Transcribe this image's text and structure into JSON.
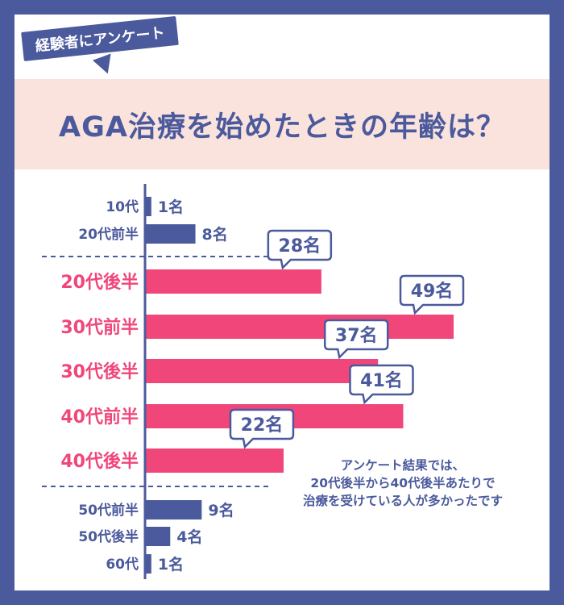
{
  "header": {
    "tag_label": "経験者にアンケート",
    "title": "AGA治療を始めたときの年齢は？"
  },
  "note_lines": [
    "アンケート結果では、",
    "20代後半から40代後半あたりで",
    "治療を受けている人が多かったです"
  ],
  "colors": {
    "navy": "#4b5a9c",
    "pink": "#f0467a",
    "band": "#fae2dd"
  },
  "chart_data": {
    "type": "bar",
    "orientation": "horizontal",
    "unit": "名",
    "categories": [
      "10代",
      "20代前半",
      "20代後半",
      "30代前半",
      "30代後半",
      "40代前半",
      "40代後半",
      "50代前半",
      "50代後半",
      "60代"
    ],
    "values": [
      1,
      8,
      28,
      49,
      37,
      41,
      22,
      9,
      4,
      1
    ],
    "highlighted": [
      false,
      false,
      true,
      true,
      true,
      true,
      true,
      false,
      false,
      false
    ],
    "value_labels": [
      "1名",
      "8名",
      "28名",
      "49名",
      "37名",
      "41名",
      "22名",
      "9名",
      "4名",
      "1名"
    ]
  }
}
